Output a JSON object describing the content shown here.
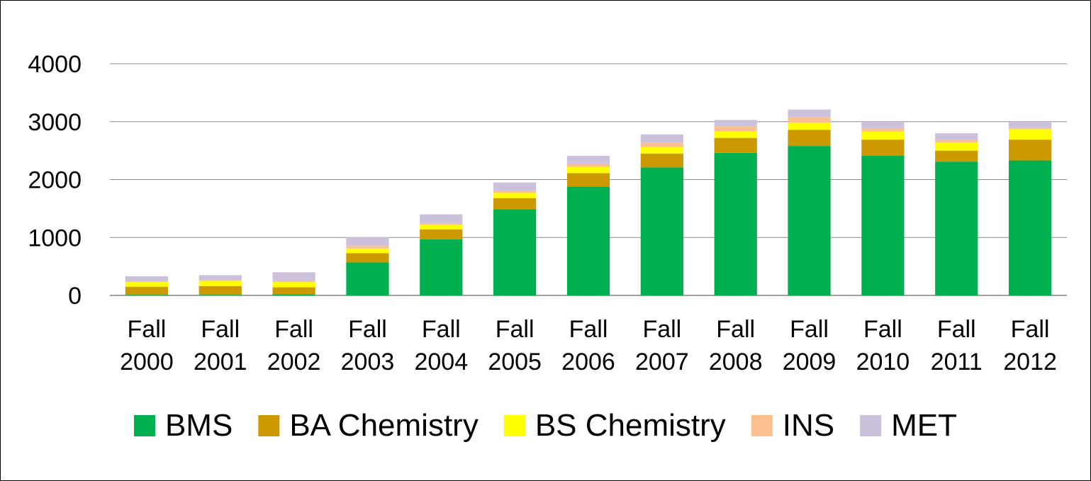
{
  "chart_data": {
    "type": "bar",
    "stacked": true,
    "categories": [
      [
        "Fall",
        "2000"
      ],
      [
        "Fall",
        "2001"
      ],
      [
        "Fall",
        "2002"
      ],
      [
        "Fall",
        "2003"
      ],
      [
        "Fall",
        "2004"
      ],
      [
        "Fall",
        "2005"
      ],
      [
        "Fall",
        "2006"
      ],
      [
        "Fall",
        "2007"
      ],
      [
        "Fall",
        "2008"
      ],
      [
        "Fall",
        "2009"
      ],
      [
        "Fall",
        "2010"
      ],
      [
        "Fall",
        "2011"
      ],
      [
        "Fall",
        "2012"
      ]
    ],
    "series": [
      {
        "name": "BMS",
        "color": "#00B050",
        "values": [
          10,
          10,
          20,
          570,
          970,
          1490,
          1880,
          2210,
          2460,
          2580,
          2410,
          2310,
          2330
        ]
      },
      {
        "name": "BA Chemistry",
        "color": "#CC9900",
        "values": [
          140,
          150,
          120,
          160,
          170,
          190,
          230,
          240,
          260,
          280,
          280,
          190,
          360
        ]
      },
      {
        "name": "BS Chemistry",
        "color": "#FFFF00",
        "values": [
          80,
          90,
          90,
          80,
          80,
          90,
          110,
          110,
          110,
          120,
          140,
          140,
          180
        ]
      },
      {
        "name": "INS",
        "color": "#FAC090",
        "values": [
          10,
          10,
          20,
          50,
          30,
          40,
          50,
          80,
          90,
          100,
          60,
          40,
          20
        ]
      },
      {
        "name": "MET",
        "color": "#CCC1DA",
        "values": [
          90,
          90,
          150,
          150,
          150,
          140,
          140,
          140,
          110,
          130,
          110,
          120,
          110
        ]
      }
    ],
    "yticks": [
      "0",
      "1000",
      "2000",
      "3000",
      "4000"
    ],
    "ylim": [
      0,
      4000
    ],
    "grid": true,
    "legend_position": "bottom"
  }
}
